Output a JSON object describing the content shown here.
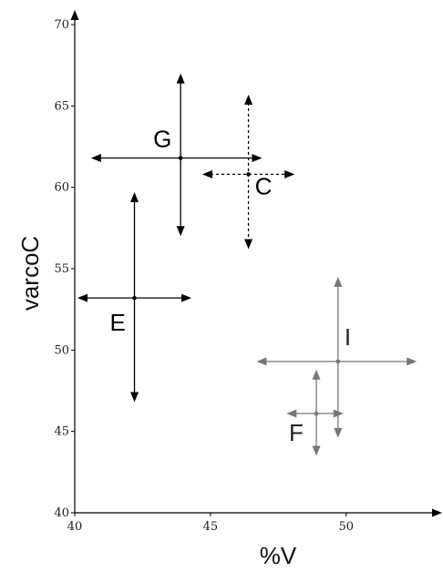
{
  "chart_data": {
    "type": "scatter",
    "title": "",
    "xlabel": "%V",
    "ylabel": "varcoC",
    "xlim": [
      40,
      53.5
    ],
    "ylim": [
      40,
      70
    ],
    "x_ticks": [
      "40",
      "45",
      "50"
    ],
    "y_ticks": [
      "40",
      "45",
      "50",
      "55",
      "60",
      "65",
      "70"
    ],
    "grid": false,
    "points": [
      {
        "label": "G",
        "x": 43.9,
        "y": 61.8,
        "x_low": 40.6,
        "x_high": 46.9,
        "y_low": 57.0,
        "y_high": 67.0,
        "color": "#000000",
        "dashed": false
      },
      {
        "label": "C",
        "x": 46.4,
        "y": 60.8,
        "x_low": 44.7,
        "x_high": 48.1,
        "y_low": 56.2,
        "y_high": 65.7,
        "color": "#000000",
        "dashed": true
      },
      {
        "label": "E",
        "x": 42.2,
        "y": 53.2,
        "x_low": 40.1,
        "x_high": 44.3,
        "y_low": 46.8,
        "y_high": 59.7,
        "color": "#000000",
        "dashed": false
      },
      {
        "label": "I",
        "x": 49.7,
        "y": 49.3,
        "x_low": 46.7,
        "x_high": 52.6,
        "y_low": 44.6,
        "y_high": 54.5,
        "color": "#777777",
        "dashed": false
      },
      {
        "label": "F",
        "x": 48.9,
        "y": 46.1,
        "x_low": 47.8,
        "x_high": 49.9,
        "y_low": 43.5,
        "y_high": 48.8,
        "color": "#777777",
        "dashed": false
      }
    ]
  }
}
